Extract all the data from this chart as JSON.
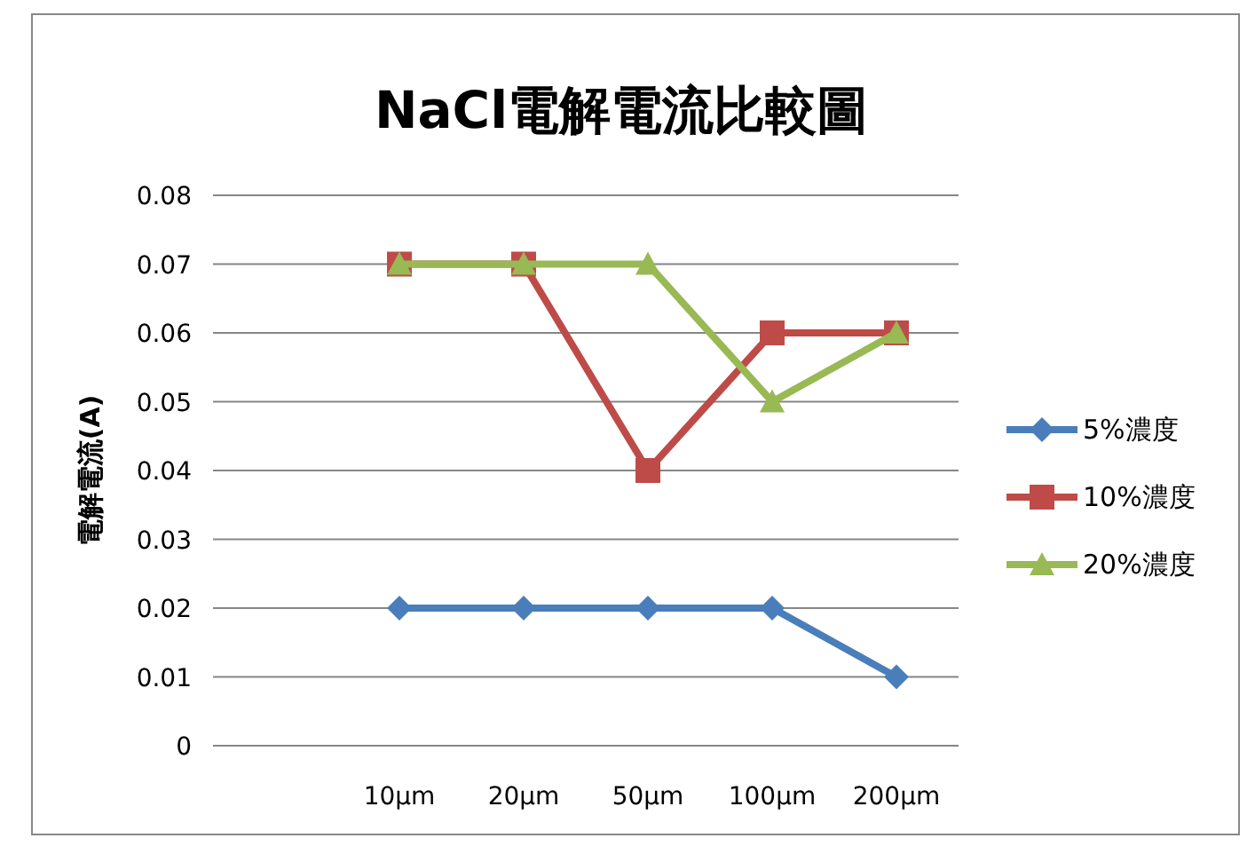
{
  "chart_data": {
    "type": "line",
    "title": "NaCl電解電流比較圖",
    "ylabel": "電解電流(A)",
    "categories": [
      null,
      "10µm",
      "20µm",
      "50µm",
      "100µm",
      "200µm"
    ],
    "ylim": [
      0,
      0.08
    ],
    "yticks": [
      {
        "value": 0,
        "label": "0"
      },
      {
        "value": 0.01,
        "label": "0.01"
      },
      {
        "value": 0.02,
        "label": "0.02"
      },
      {
        "value": 0.03,
        "label": "0.03"
      },
      {
        "value": 0.04,
        "label": "0.04"
      },
      {
        "value": 0.05,
        "label": "0.05"
      },
      {
        "value": 0.06,
        "label": "0.06"
      },
      {
        "value": 0.07,
        "label": "0.07"
      },
      {
        "value": 0.08,
        "label": "0.08"
      }
    ],
    "grid": "y",
    "legend": "right",
    "line_style": "solid",
    "series": [
      {
        "name": "5%濃度",
        "color": "#4a7ebb",
        "marker": "diamond",
        "values": [
          null,
          0.02,
          0.02,
          0.02,
          0.02,
          0.01
        ]
      },
      {
        "name": "10%濃度",
        "color": "#be4b48",
        "marker": "square",
        "values": [
          null,
          0.07,
          0.07,
          0.04,
          0.06,
          0.06
        ]
      },
      {
        "name": "20%濃度",
        "color": "#98b954",
        "marker": "triangle",
        "values": [
          null,
          0.07,
          0.07,
          0.07,
          0.05,
          0.06
        ]
      }
    ]
  }
}
